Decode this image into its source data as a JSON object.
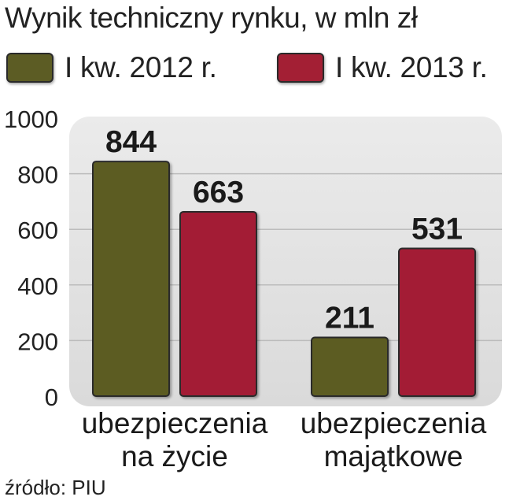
{
  "title": "Wynik techniczny rynku, w mln zł",
  "legend": [
    {
      "label": "I kw. 2012 r.",
      "color": "#5c5c24"
    },
    {
      "label": "I kw. 2013 r.",
      "color": "#a31f34"
    }
  ],
  "chart_data": {
    "type": "bar",
    "title": "Wynik techniczny rynku, w mln zł",
    "categories": [
      [
        "ubezpieczenia",
        "na życie"
      ],
      [
        "ubezpieczenia",
        "majątkowe"
      ]
    ],
    "series": [
      {
        "name": "I kw. 2012 r.",
        "values": [
          844,
          211
        ],
        "color": "#5c5c24"
      },
      {
        "name": "I kw. 2013 r.",
        "values": [
          663,
          531
        ],
        "color": "#a31f34"
      }
    ],
    "ylim": [
      0,
      1000
    ],
    "yticks": [
      0,
      200,
      400,
      600,
      800,
      1000
    ],
    "grid": true,
    "legend_position": "top"
  },
  "source": "źródło: PIU"
}
